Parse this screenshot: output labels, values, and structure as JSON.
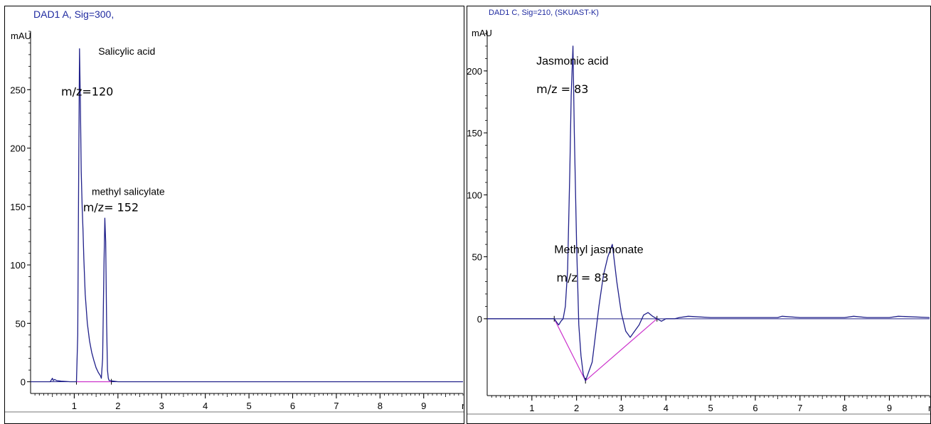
{
  "chart_data": [
    {
      "type": "line",
      "title": "DAD1 A, Sig=300,",
      "ylabel": "mAU",
      "xlabel": "m",
      "xlim": [
        0.0,
        9.9
      ],
      "ylim": [
        -10,
        300
      ],
      "x_ticks": [
        1,
        2,
        3,
        4,
        5,
        6,
        7,
        8,
        9
      ],
      "x_tick_labels": [
        "1",
        "2",
        "3",
        "4",
        "5",
        "6",
        "7",
        "8",
        "9"
      ],
      "y_ticks": [
        0,
        50,
        100,
        150,
        200,
        250
      ],
      "y_tick_labels": [
        "0",
        "50",
        "100",
        "150",
        "200",
        "250"
      ],
      "grid": false,
      "baseline_color": "#cc33cc",
      "trace_color": "#20208a",
      "series": [
        {
          "x": [
            0.0,
            0.45,
            0.5,
            0.52,
            0.55,
            0.6,
            0.7,
            0.9,
            1.05,
            1.08,
            1.1,
            1.12,
            1.14,
            1.16,
            1.18,
            1.2,
            1.22,
            1.25,
            1.3,
            1.35,
            1.4,
            1.45,
            1.5,
            1.55,
            1.6,
            1.62,
            1.65,
            1.68,
            1.7,
            1.72,
            1.74,
            1.76,
            1.78,
            1.8,
            1.9,
            2.0,
            2.5,
            3.0,
            4.0,
            5.0,
            6.0,
            7.0,
            8.0,
            9.0,
            9.9
          ],
          "y": [
            0,
            0,
            3,
            1,
            2,
            1,
            0.5,
            0,
            0,
            40,
            175,
            285,
            240,
            180,
            150,
            130,
            105,
            75,
            50,
            35,
            25,
            18,
            12,
            8,
            5,
            3,
            20,
            100,
            140,
            120,
            50,
            10,
            3,
            1,
            0.5,
            0,
            0,
            0,
            0,
            0,
            0,
            0,
            0,
            0,
            0
          ]
        }
      ],
      "annotations": [
        {
          "text": "Salicylic acid",
          "x": 1.55,
          "y": 280
        },
        {
          "text": "m/z=120",
          "x": 0.7,
          "y": 245
        },
        {
          "text": "methyl salicylate",
          "x": 1.4,
          "y": 160
        },
        {
          "text": "m/z= 152",
          "x": 1.2,
          "y": 146
        }
      ],
      "baseline": [
        {
          "x": 1.05,
          "y": 0
        },
        {
          "x": 1.85,
          "y": 0
        }
      ]
    },
    {
      "type": "line",
      "title": "DAD1 C, Sig=210, (SKUAST-K)",
      "ylabel": "mAU",
      "xlabel": "m",
      "xlim": [
        0.0,
        9.9
      ],
      "ylim": [
        -62,
        232
      ],
      "x_ticks": [
        1,
        2,
        3,
        4,
        5,
        6,
        7,
        8,
        9
      ],
      "x_tick_labels": [
        "1",
        "2",
        "3",
        "4",
        "5",
        "6",
        "7",
        "8",
        "9"
      ],
      "y_ticks": [
        0,
        50,
        100,
        150,
        200
      ],
      "y_tick_labels": [
        "0",
        "50",
        "100",
        "150",
        "200"
      ],
      "grid": false,
      "baseline_color": "#cc33cc",
      "trace_color": "#20208a",
      "series": [
        {
          "x": [
            0.0,
            1.5,
            1.6,
            1.65,
            1.7,
            1.75,
            1.8,
            1.85,
            1.88,
            1.92,
            1.95,
            2.0,
            2.05,
            2.1,
            2.15,
            2.2,
            2.25,
            2.3,
            2.35,
            2.4,
            2.5,
            2.6,
            2.7,
            2.8,
            2.85,
            2.9,
            3.0,
            3.1,
            3.2,
            3.3,
            3.4,
            3.5,
            3.6,
            3.7,
            3.8,
            3.9,
            4.0,
            4.2,
            4.3,
            4.5,
            5.0,
            5.5,
            6.0,
            6.5,
            6.6,
            7.0,
            7.5,
            8.0,
            8.2,
            8.5,
            9.0,
            9.2,
            9.9
          ],
          "y": [
            0,
            0,
            -5,
            -2,
            0,
            10,
            40,
            120,
            180,
            220,
            150,
            60,
            -5,
            -30,
            -45,
            -50,
            -45,
            -40,
            -35,
            -20,
            10,
            35,
            50,
            60,
            45,
            30,
            5,
            -10,
            -15,
            -10,
            -5,
            3,
            5,
            2,
            0,
            -2,
            0,
            0,
            1,
            2,
            1,
            1,
            1,
            1,
            2,
            1,
            1,
            1,
            2,
            1,
            1,
            2,
            1
          ]
        }
      ],
      "annotations": [
        {
          "text": "Jasmonic acid",
          "x": 1.1,
          "y": 205
        },
        {
          "text": "m/z = 83",
          "x": 1.1,
          "y": 182
        },
        {
          "text": "Methyl jasmonate",
          "x": 1.5,
          "y": 53
        },
        {
          "text": "m/z = 83",
          "x": 1.55,
          "y": 30
        }
      ],
      "baseline": [
        {
          "x": 1.5,
          "y": 0
        },
        {
          "x": 2.2,
          "y": -50
        },
        {
          "x": 3.8,
          "y": 0
        }
      ]
    }
  ]
}
